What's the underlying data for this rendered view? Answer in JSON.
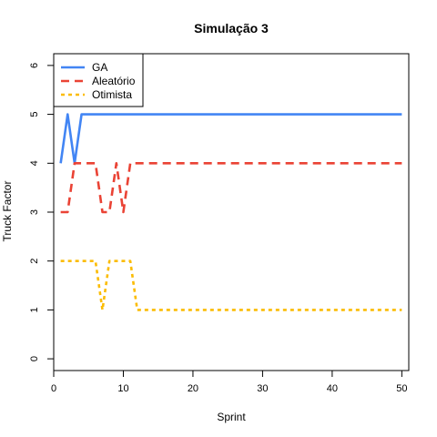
{
  "chart_data": {
    "type": "line",
    "title": "Simulação 3",
    "xlabel": "Sprint",
    "ylabel": "Truck Factor",
    "xlim": [
      0,
      51
    ],
    "ylim": [
      -0.24,
      6.24
    ],
    "xticks": [
      0,
      10,
      20,
      30,
      40,
      50
    ],
    "yticks": [
      0,
      1,
      2,
      3,
      4,
      5,
      6
    ],
    "grid": false,
    "legend_position": "top-left",
    "series": [
      {
        "name": "GA",
        "color": "#4285f4",
        "dash": "solid",
        "x": [
          1,
          2,
          3,
          4,
          5,
          6,
          7,
          8,
          9,
          10,
          11,
          12,
          13,
          14,
          15,
          16,
          17,
          18,
          19,
          20,
          21,
          22,
          23,
          24,
          25,
          26,
          27,
          28,
          29,
          30,
          31,
          32,
          33,
          34,
          35,
          36,
          37,
          38,
          39,
          40,
          41,
          42,
          43,
          44,
          45,
          46,
          47,
          48,
          49,
          50
        ],
        "y": [
          4,
          5,
          4,
          5,
          5,
          5,
          5,
          5,
          5,
          5,
          5,
          5,
          5,
          5,
          5,
          5,
          5,
          5,
          5,
          5,
          5,
          5,
          5,
          5,
          5,
          5,
          5,
          5,
          5,
          5,
          5,
          5,
          5,
          5,
          5,
          5,
          5,
          5,
          5,
          5,
          5,
          5,
          5,
          5,
          5,
          5,
          5,
          5,
          5,
          5
        ]
      },
      {
        "name": "Aleatório",
        "color": "#ea4335",
        "dash": "dashed",
        "x": [
          1,
          2,
          3,
          4,
          5,
          6,
          7,
          8,
          9,
          10,
          11,
          12,
          13,
          14,
          15,
          16,
          17,
          18,
          19,
          20,
          21,
          22,
          23,
          24,
          25,
          26,
          27,
          28,
          29,
          30,
          31,
          32,
          33,
          34,
          35,
          36,
          37,
          38,
          39,
          40,
          41,
          42,
          43,
          44,
          45,
          46,
          47,
          48,
          49,
          50
        ],
        "y": [
          3,
          3,
          4,
          4,
          4,
          4,
          3,
          3,
          4,
          3,
          4,
          4,
          4,
          4,
          4,
          4,
          4,
          4,
          4,
          4,
          4,
          4,
          4,
          4,
          4,
          4,
          4,
          4,
          4,
          4,
          4,
          4,
          4,
          4,
          4,
          4,
          4,
          4,
          4,
          4,
          4,
          4,
          4,
          4,
          4,
          4,
          4,
          4,
          4,
          4
        ]
      },
      {
        "name": "Otimista",
        "color": "#fbbc04",
        "dash": "dotted",
        "x": [
          1,
          2,
          3,
          4,
          5,
          6,
          7,
          8,
          9,
          10,
          11,
          12,
          13,
          14,
          15,
          16,
          17,
          18,
          19,
          20,
          21,
          22,
          23,
          24,
          25,
          26,
          27,
          28,
          29,
          30,
          31,
          32,
          33,
          34,
          35,
          36,
          37,
          38,
          39,
          40,
          41,
          42,
          43,
          44,
          45,
          46,
          47,
          48,
          49,
          50
        ],
        "y": [
          2,
          2,
          2,
          2,
          2,
          2,
          1,
          2,
          2,
          2,
          2,
          1,
          1,
          1,
          1,
          1,
          1,
          1,
          1,
          1,
          1,
          1,
          1,
          1,
          1,
          1,
          1,
          1,
          1,
          1,
          1,
          1,
          1,
          1,
          1,
          1,
          1,
          1,
          1,
          1,
          1,
          1,
          1,
          1,
          1,
          1,
          1,
          1,
          1,
          1
        ]
      }
    ]
  }
}
